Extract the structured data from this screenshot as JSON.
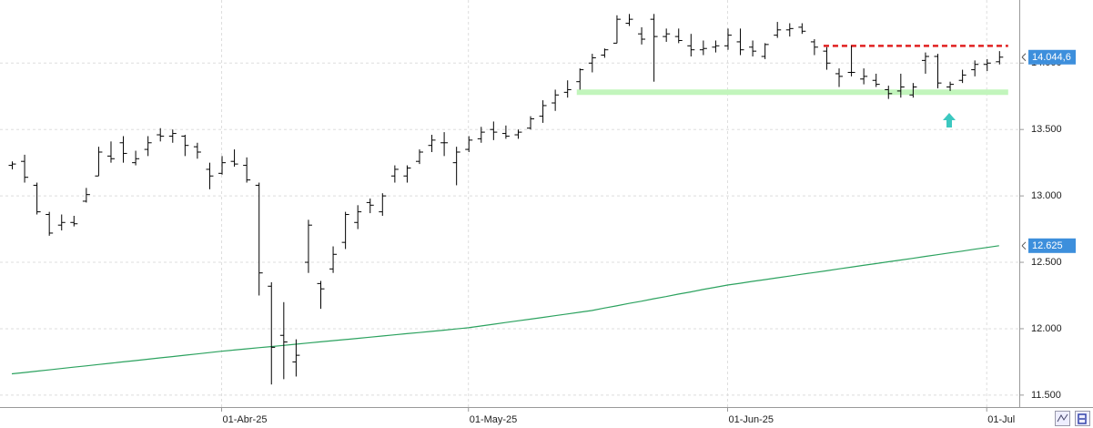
{
  "chart_data": {
    "type": "ohlc",
    "categories": [
      null,
      null,
      null,
      null,
      null,
      null,
      null,
      null,
      null,
      null,
      null,
      null,
      null,
      null,
      null,
      null,
      null,
      "01-Abr-25",
      null,
      null,
      null,
      null,
      null,
      null,
      null,
      null,
      null,
      null,
      null,
      null,
      null,
      null,
      null,
      null,
      null,
      null,
      null,
      "01-May-25",
      null,
      null,
      null,
      null,
      null,
      null,
      null,
      null,
      null,
      null,
      null,
      null,
      null,
      null,
      null,
      null,
      null,
      null,
      null,
      null,
      "01-Jun-25",
      null,
      null,
      null,
      null,
      null,
      null,
      null,
      null,
      null,
      null,
      null,
      null,
      null,
      null,
      null,
      null,
      null,
      null,
      null,
      null,
      "01-Jul",
      null
    ],
    "open": [
      13230,
      13260,
      13080,
      12860,
      12780,
      12800,
      12960,
      13150,
      13300,
      13400,
      13250,
      13350,
      13460,
      13450,
      13450,
      13370,
      13200,
      13170,
      13260,
      13230,
      13080,
      12320,
      11950,
      11750,
      12500,
      12340,
      12450,
      12650,
      12800,
      12950,
      12880,
      13150,
      13150,
      13260,
      13380,
      13400,
      13250,
      13350,
      13430,
      13500,
      13470,
      13460,
      13510,
      13600,
      13700,
      13780,
      13860,
      14000,
      14060,
      14150,
      14300,
      14220,
      14330,
      14200,
      14200,
      14130,
      14100,
      14120,
      14130,
      14160,
      14120,
      14050,
      14210,
      14250,
      14270,
      14160,
      14090,
      13920,
      13930,
      13880,
      13870,
      13800,
      13790,
      13760,
      14020,
      14050,
      13820,
      13870,
      13950,
      13990,
      14010
    ],
    "high": [
      13260,
      13310,
      13100,
      12880,
      12860,
      12850,
      13060,
      13370,
      13410,
      13450,
      13340,
      13450,
      13510,
      13500,
      13460,
      13400,
      13250,
      13300,
      13350,
      13290,
      13100,
      12350,
      12200,
      11920,
      12820,
      12360,
      12620,
      12880,
      12930,
      12980,
      13020,
      13230,
      13230,
      13350,
      13460,
      13480,
      13370,
      13450,
      13520,
      13560,
      13530,
      13500,
      13600,
      13720,
      13800,
      13870,
      13960,
      14070,
      14110,
      14360,
      14370,
      14270,
      14370,
      14260,
      14260,
      14220,
      14170,
      14170,
      14260,
      14260,
      14170,
      14150,
      14310,
      14300,
      14300,
      14180,
      14120,
      13960,
      14130,
      13960,
      13920,
      13830,
      13920,
      13850,
      14080,
      14070,
      13860,
      13950,
      14020,
      14030,
      14090
    ],
    "low": [
      13200,
      13100,
      12860,
      12700,
      12740,
      12770,
      12950,
      13150,
      13250,
      13250,
      13230,
      13300,
      13410,
      13400,
      13300,
      13280,
      13050,
      13160,
      13220,
      13100,
      12250,
      11580,
      11620,
      11640,
      12420,
      12150,
      12420,
      12600,
      12750,
      12870,
      12850,
      13100,
      13100,
      13240,
      13330,
      13300,
      13080,
      13330,
      13400,
      13420,
      13430,
      13430,
      13500,
      13550,
      13640,
      13740,
      13800,
      13930,
      14040,
      14150,
      14280,
      14140,
      13860,
      14160,
      14150,
      14050,
      14060,
      14080,
      14100,
      14060,
      14050,
      14030,
      14190,
      14200,
      14220,
      14060,
      13950,
      13820,
      13900,
      13840,
      13820,
      13730,
      13740,
      13740,
      13920,
      13810,
      13790,
      13850,
      13900,
      13940,
      13990
    ],
    "close": [
      13240,
      13140,
      12880,
      12720,
      12800,
      12790,
      13010,
      13330,
      13280,
      13320,
      13280,
      13400,
      13450,
      13470,
      13380,
      13330,
      13150,
      13250,
      13240,
      13120,
      12420,
      11860,
      11900,
      11800,
      12780,
      12300,
      12560,
      12860,
      12880,
      12930,
      13000,
      13200,
      13210,
      13330,
      13420,
      13400,
      13330,
      13420,
      13480,
      13480,
      13450,
      13480,
      13580,
      13680,
      13760,
      13800,
      13950,
      14040,
      14100,
      14330,
      14330,
      14180,
      14200,
      14220,
      14170,
      14100,
      14110,
      14130,
      14210,
      14100,
      14090,
      14140,
      14250,
      14260,
      14240,
      14120,
      14000,
      13900,
      13930,
      13900,
      13840,
      13770,
      13820,
      13820,
      14050,
      13850,
      13840,
      13910,
      13990,
      14000,
      14044.6
    ],
    "bar_color": "#000000",
    "moving_average": {
      "color": "#2ca25f",
      "values": [
        11660,
        11670,
        11680,
        11690,
        11700,
        11710,
        11720,
        11730,
        11740,
        11750,
        11760,
        11770,
        11780,
        11790,
        11800,
        11810,
        11820,
        11830,
        11839,
        11848,
        11857,
        11865,
        11874,
        11883,
        11892,
        11901,
        11910,
        11918,
        11927,
        11936,
        11945,
        11954,
        11963,
        11971,
        11980,
        11989,
        11998,
        12007,
        12020,
        12033,
        12046,
        12059,
        12072,
        12085,
        12098,
        12111,
        12124,
        12137,
        12155,
        12172,
        12190,
        12207,
        12225,
        12242,
        12260,
        12277,
        12295,
        12312,
        12329,
        12342,
        12356,
        12369,
        12383,
        12396,
        12410,
        12423,
        12436,
        12450,
        12463,
        12477,
        12490,
        12504,
        12517,
        12530,
        12544,
        12557,
        12571,
        12584,
        12598,
        12611,
        12625
      ]
    },
    "levels": [
      {
        "value": 14130,
        "color": "#e02020",
        "dashed": true,
        "start": 66,
        "end": 80
      },
      {
        "value": 13781,
        "color": "#c2f5bc",
        "dashed": false,
        "start": 46,
        "end": 80
      }
    ],
    "price_markers": [
      {
        "value": 14044.6,
        "label": "14.044,6",
        "color": "#3d8fdc"
      },
      {
        "value": 12625,
        "label": "12.625",
        "color": "#3d8fdc"
      }
    ],
    "ylim": [
      11410,
      14475
    ],
    "yticks": [
      {
        "value": 11500,
        "label": "11.500"
      },
      {
        "value": 12000,
        "label": "12.000"
      },
      {
        "value": 12500,
        "label": "12.500"
      },
      {
        "value": 13000,
        "label": "13.000"
      },
      {
        "value": 13500,
        "label": "13.500"
      },
      {
        "value": 14000,
        "label": "14.000"
      }
    ],
    "grid": true
  }
}
